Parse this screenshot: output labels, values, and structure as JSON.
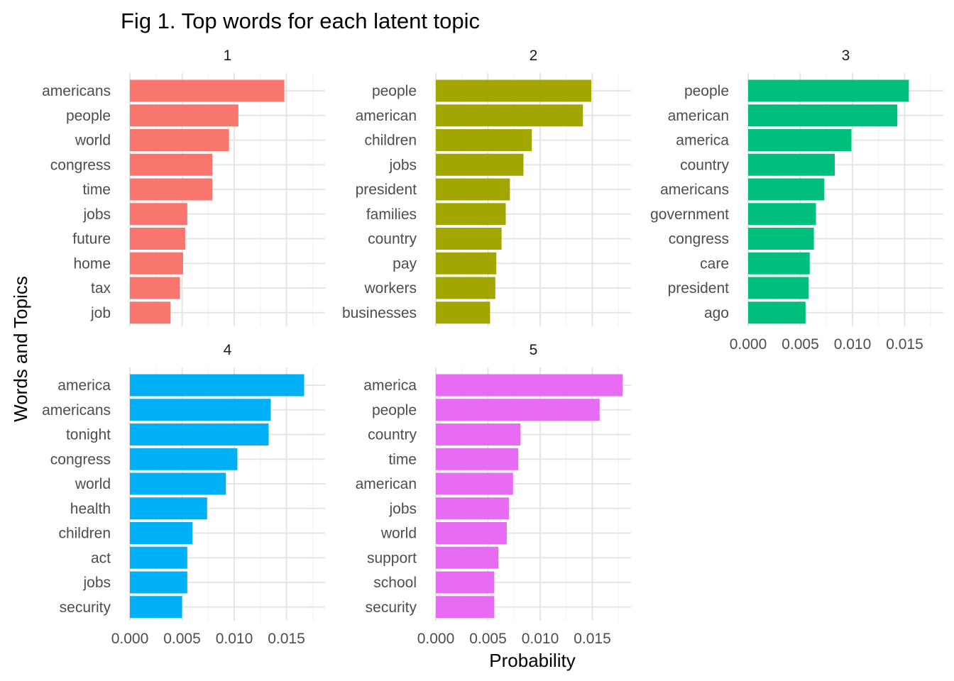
{
  "chart_data": {
    "type": "bar",
    "orientation": "horizontal",
    "layout": "facet-wrap 3 columns",
    "title": "Fig 1. Top words for each latent topic",
    "xlabel": "Probability",
    "ylabel": "Words and Topics",
    "xlim": [
      0,
      0.0185
    ],
    "x_ticks": [
      "0.000",
      "0.005",
      "0.010",
      "0.015"
    ],
    "grid": true,
    "legend": "none",
    "panels": [
      {
        "name": "1",
        "color": "#F8766D",
        "categories": [
          "americans",
          "people",
          "world",
          "congress",
          "time",
          "jobs",
          "future",
          "home",
          "tax",
          "job"
        ],
        "values": [
          0.0148,
          0.0104,
          0.0095,
          0.0079,
          0.0079,
          0.0055,
          0.0053,
          0.0051,
          0.0048,
          0.0039
        ]
      },
      {
        "name": "2",
        "color": "#A3A500",
        "categories": [
          "people",
          "american",
          "children",
          "jobs",
          "president",
          "families",
          "country",
          "pay",
          "workers",
          "businesses"
        ],
        "values": [
          0.0149,
          0.0141,
          0.0092,
          0.0084,
          0.0071,
          0.0067,
          0.0063,
          0.0058,
          0.0057,
          0.0052
        ]
      },
      {
        "name": "3",
        "color": "#00BF7D",
        "categories": [
          "people",
          "american",
          "america",
          "country",
          "americans",
          "government",
          "congress",
          "care",
          "president",
          "ago"
        ],
        "values": [
          0.0154,
          0.0143,
          0.0099,
          0.0083,
          0.0073,
          0.0065,
          0.0063,
          0.0059,
          0.0058,
          0.0055
        ]
      },
      {
        "name": "4",
        "color": "#00B0F6",
        "categories": [
          "america",
          "americans",
          "tonight",
          "congress",
          "world",
          "health",
          "children",
          "act",
          "jobs",
          "security"
        ],
        "values": [
          0.0167,
          0.0135,
          0.0133,
          0.0103,
          0.0092,
          0.0074,
          0.006,
          0.0055,
          0.0055,
          0.005
        ]
      },
      {
        "name": "5",
        "color": "#E76BF3",
        "categories": [
          "america",
          "people",
          "country",
          "time",
          "american",
          "jobs",
          "world",
          "support",
          "school",
          "security"
        ],
        "values": [
          0.0179,
          0.0157,
          0.0081,
          0.0079,
          0.0074,
          0.007,
          0.0068,
          0.006,
          0.0056,
          0.0056
        ]
      }
    ]
  }
}
